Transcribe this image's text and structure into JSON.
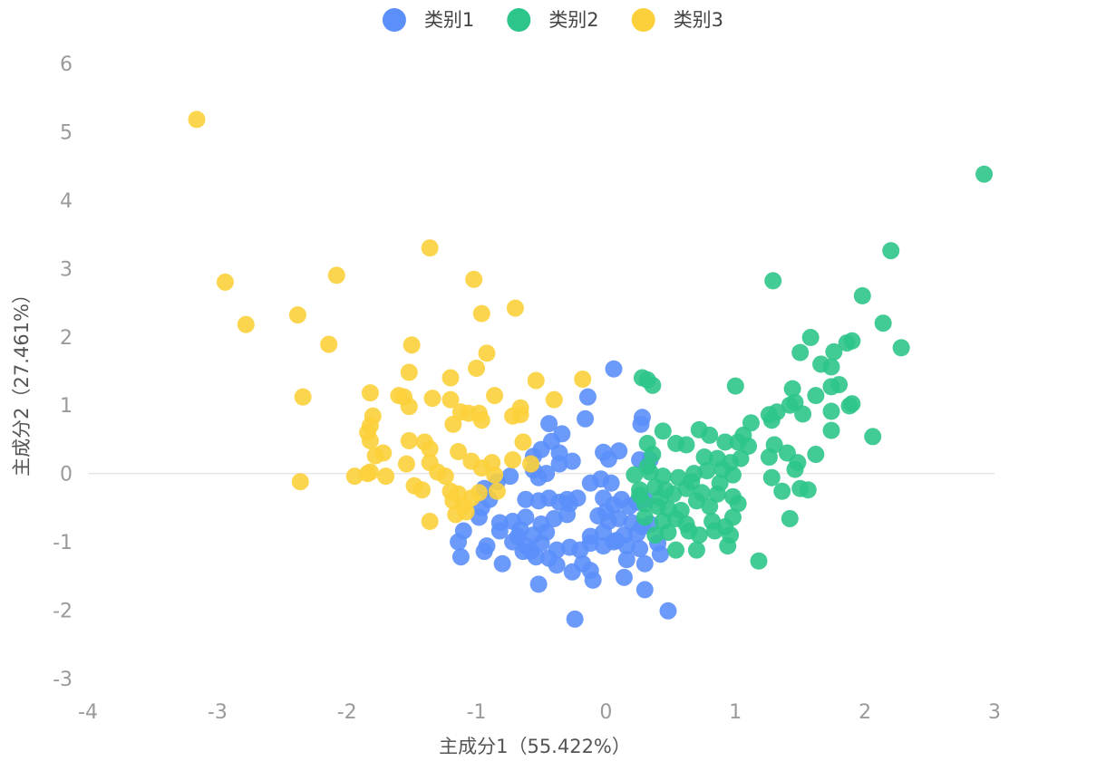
{
  "chart_data": {
    "type": "scatter",
    "xlabel": "主成分1（55.422%）",
    "ylabel": "主成分2（27.461%）",
    "xlim": [
      -4,
      3
    ],
    "ylim": [
      -3,
      6
    ],
    "xticks": [
      "-4",
      "-3",
      "-2",
      "-1",
      "0",
      "1",
      "2",
      "3"
    ],
    "yticks": [
      "-3",
      "-2",
      "-1",
      "0",
      "1",
      "2",
      "3",
      "4",
      "5",
      "6"
    ],
    "grid": "zero-line-only",
    "legend_position": "top-center",
    "series": [
      {
        "name": "类别1",
        "color": "#5b8ff9",
        "points": [
          [
            0.06,
            1.53
          ],
          [
            -0.14,
            1.12
          ],
          [
            -0.16,
            0.8
          ],
          [
            0.27,
            0.72
          ],
          [
            0.28,
            0.82
          ],
          [
            -0.44,
            0.73
          ],
          [
            -0.34,
            0.58
          ],
          [
            -0.42,
            0.47
          ],
          [
            -0.5,
            0.35
          ],
          [
            -0.36,
            0.3
          ],
          [
            -0.56,
            0.25
          ],
          [
            -0.36,
            0.14
          ],
          [
            -0.26,
            0.18
          ],
          [
            -0.02,
            0.31
          ],
          [
            0.1,
            0.33
          ],
          [
            0.02,
            0.21
          ],
          [
            0.26,
            0.2
          ],
          [
            0.34,
            0.2
          ],
          [
            -0.56,
            0.05
          ],
          [
            -0.46,
            0.0
          ],
          [
            -0.52,
            -0.06
          ],
          [
            -0.74,
            -0.04
          ],
          [
            -0.84,
            -0.12
          ],
          [
            -0.94,
            -0.22
          ],
          [
            -0.9,
            -0.38
          ],
          [
            -0.62,
            -0.38
          ],
          [
            -0.52,
            -0.4
          ],
          [
            -0.44,
            -0.36
          ],
          [
            -0.36,
            -0.42
          ],
          [
            -0.28,
            -0.44
          ],
          [
            -0.22,
            -0.36
          ],
          [
            -0.12,
            -0.14
          ],
          [
            -0.04,
            -0.08
          ],
          [
            0.04,
            -0.14
          ],
          [
            -0.02,
            -0.36
          ],
          [
            0.06,
            -0.46
          ],
          [
            0.12,
            -0.38
          ],
          [
            0.18,
            -0.48
          ],
          [
            0.24,
            -0.42
          ],
          [
            0.3,
            -0.38
          ],
          [
            -0.96,
            -0.5
          ],
          [
            -0.98,
            -0.64
          ],
          [
            -0.82,
            -0.72
          ],
          [
            -0.72,
            -0.7
          ],
          [
            -0.62,
            -0.64
          ],
          [
            -0.5,
            -0.74
          ],
          [
            -0.4,
            -0.66
          ],
          [
            -0.3,
            -0.6
          ],
          [
            -0.06,
            -0.62
          ],
          [
            0.02,
            -0.7
          ],
          [
            0.1,
            -0.66
          ],
          [
            0.2,
            -0.72
          ],
          [
            0.28,
            -0.78
          ],
          [
            0.34,
            -0.74
          ],
          [
            -1.1,
            -0.84
          ],
          [
            -0.82,
            -0.84
          ],
          [
            -0.66,
            -0.82
          ],
          [
            -0.56,
            -0.9
          ],
          [
            -0.46,
            -0.86
          ],
          [
            -0.12,
            -0.92
          ],
          [
            -0.02,
            -0.86
          ],
          [
            0.14,
            -0.9
          ],
          [
            0.24,
            -0.88
          ],
          [
            -1.14,
            -1.0
          ],
          [
            -0.92,
            -1.06
          ],
          [
            -0.72,
            -1.0
          ],
          [
            -0.62,
            -1.06
          ],
          [
            -0.5,
            -1.02
          ],
          [
            -0.38,
            -1.12
          ],
          [
            -0.28,
            -1.08
          ],
          [
            -0.12,
            -1.02
          ],
          [
            -0.02,
            -1.06
          ],
          [
            0.06,
            -1.0
          ],
          [
            0.16,
            -1.06
          ],
          [
            0.26,
            -1.1
          ],
          [
            0.4,
            -1.02
          ],
          [
            -1.12,
            -1.22
          ],
          [
            -0.94,
            -1.14
          ],
          [
            -0.8,
            -1.32
          ],
          [
            -0.64,
            -1.14
          ],
          [
            -0.54,
            -1.22
          ],
          [
            -0.44,
            -1.24
          ],
          [
            -0.38,
            -1.34
          ],
          [
            -0.26,
            -1.44
          ],
          [
            -0.18,
            -1.32
          ],
          [
            -0.12,
            -1.42
          ],
          [
            0.16,
            -1.26
          ],
          [
            0.3,
            -1.32
          ],
          [
            0.42,
            -1.18
          ],
          [
            -0.1,
            -1.56
          ],
          [
            -0.52,
            -1.62
          ],
          [
            0.14,
            -1.52
          ],
          [
            0.3,
            -1.7
          ],
          [
            0.48,
            -2.01
          ],
          [
            -0.24,
            -2.13
          ],
          [
            -0.68,
            -0.92
          ],
          [
            -0.58,
            -1.14
          ],
          [
            -0.2,
            -1.12
          ],
          [
            0.08,
            -0.98
          ],
          [
            -0.3,
            -0.38
          ],
          [
            0.0,
            -0.56
          ]
        ]
      },
      {
        "name": "类别2",
        "color": "#2ec58a",
        "points": [
          [
            2.92,
            4.38
          ],
          [
            2.2,
            3.26
          ],
          [
            1.29,
            2.82
          ],
          [
            1.98,
            2.6
          ],
          [
            2.14,
            2.2
          ],
          [
            2.28,
            1.84
          ],
          [
            1.58,
            1.99
          ],
          [
            1.9,
            1.94
          ],
          [
            1.86,
            1.91
          ],
          [
            1.76,
            1.78
          ],
          [
            1.5,
            1.77
          ],
          [
            1.66,
            1.6
          ],
          [
            1.74,
            1.56
          ],
          [
            1.8,
            1.3
          ],
          [
            1.74,
            1.27
          ],
          [
            1.62,
            1.14
          ],
          [
            1.44,
            1.24
          ],
          [
            1.0,
            1.28
          ],
          [
            0.28,
            1.4
          ],
          [
            0.32,
            1.37
          ],
          [
            0.36,
            1.29
          ],
          [
            1.9,
            1.02
          ],
          [
            1.88,
            0.99
          ],
          [
            1.46,
            1.04
          ],
          [
            1.42,
            1.0
          ],
          [
            1.26,
            0.86
          ],
          [
            1.32,
            0.9
          ],
          [
            1.52,
            0.87
          ],
          [
            1.74,
            0.91
          ],
          [
            1.28,
            0.78
          ],
          [
            1.12,
            0.74
          ],
          [
            1.06,
            0.56
          ],
          [
            1.74,
            0.63
          ],
          [
            2.06,
            0.54
          ],
          [
            0.72,
            0.64
          ],
          [
            0.8,
            0.56
          ],
          [
            0.92,
            0.46
          ],
          [
            1.02,
            0.46
          ],
          [
            1.1,
            0.4
          ],
          [
            1.3,
            0.42
          ],
          [
            1.4,
            0.3
          ],
          [
            1.62,
            0.28
          ],
          [
            0.44,
            0.62
          ],
          [
            0.54,
            0.44
          ],
          [
            0.62,
            0.42
          ],
          [
            0.32,
            0.44
          ],
          [
            0.36,
            0.28
          ],
          [
            0.76,
            0.24
          ],
          [
            0.86,
            0.22
          ],
          [
            0.96,
            0.16
          ],
          [
            1.04,
            0.22
          ],
          [
            1.26,
            0.24
          ],
          [
            1.48,
            0.16
          ],
          [
            1.46,
            0.06
          ],
          [
            0.22,
            -0.02
          ],
          [
            0.34,
            0.02
          ],
          [
            0.44,
            -0.04
          ],
          [
            0.56,
            -0.06
          ],
          [
            0.68,
            0.0
          ],
          [
            0.78,
            0.04
          ],
          [
            0.9,
            0.06
          ],
          [
            0.98,
            -0.02
          ],
          [
            1.28,
            -0.06
          ],
          [
            0.26,
            -0.24
          ],
          [
            0.38,
            -0.2
          ],
          [
            0.46,
            -0.24
          ],
          [
            0.52,
            -0.3
          ],
          [
            0.62,
            -0.22
          ],
          [
            0.74,
            -0.28
          ],
          [
            0.86,
            -0.3
          ],
          [
            0.98,
            -0.34
          ],
          [
            1.36,
            -0.26
          ],
          [
            1.5,
            -0.22
          ],
          [
            1.56,
            -0.24
          ],
          [
            0.3,
            -0.44
          ],
          [
            0.4,
            -0.48
          ],
          [
            0.48,
            -0.52
          ],
          [
            0.58,
            -0.54
          ],
          [
            0.7,
            -0.4
          ],
          [
            0.8,
            -0.48
          ],
          [
            1.02,
            -0.44
          ],
          [
            0.3,
            -0.64
          ],
          [
            0.44,
            -0.7
          ],
          [
            0.54,
            -0.66
          ],
          [
            0.62,
            -0.74
          ],
          [
            0.82,
            -0.7
          ],
          [
            0.98,
            -0.64
          ],
          [
            1.42,
            -0.66
          ],
          [
            0.38,
            -0.9
          ],
          [
            0.48,
            -0.86
          ],
          [
            0.64,
            -0.84
          ],
          [
            0.72,
            -0.9
          ],
          [
            0.84,
            -0.84
          ],
          [
            0.92,
            -0.78
          ],
          [
            0.96,
            -0.9
          ],
          [
            0.54,
            -1.12
          ],
          [
            0.7,
            -1.12
          ],
          [
            0.94,
            -1.06
          ],
          [
            1.18,
            -1.28
          ],
          [
            0.26,
            -0.32
          ],
          [
            0.42,
            -0.36
          ],
          [
            0.66,
            -0.12
          ],
          [
            0.88,
            -0.14
          ],
          [
            0.32,
            0.1
          ]
        ]
      },
      {
        "name": "类别3",
        "color": "#fcd03b",
        "points": [
          [
            -3.16,
            5.18
          ],
          [
            -2.94,
            2.8
          ],
          [
            -2.78,
            2.18
          ],
          [
            -2.38,
            2.32
          ],
          [
            -2.14,
            1.89
          ],
          [
            -2.08,
            2.9
          ],
          [
            -1.36,
            3.3
          ],
          [
            -1.02,
            2.84
          ],
          [
            -0.96,
            2.34
          ],
          [
            -0.7,
            2.42
          ],
          [
            -1.5,
            1.88
          ],
          [
            -0.92,
            1.76
          ],
          [
            -1.52,
            1.48
          ],
          [
            -1.0,
            1.54
          ],
          [
            -1.2,
            1.4
          ],
          [
            -0.54,
            1.36
          ],
          [
            -0.18,
            1.38
          ],
          [
            -2.34,
            1.12
          ],
          [
            -1.82,
            1.18
          ],
          [
            -1.6,
            1.14
          ],
          [
            -1.56,
            1.12
          ],
          [
            -1.52,
            0.98
          ],
          [
            -1.34,
            1.1
          ],
          [
            -1.2,
            1.08
          ],
          [
            -0.86,
            1.14
          ],
          [
            -0.66,
            0.96
          ],
          [
            -0.4,
            1.08
          ],
          [
            -1.8,
            0.84
          ],
          [
            -1.12,
            0.9
          ],
          [
            -1.06,
            0.88
          ],
          [
            -0.98,
            0.88
          ],
          [
            -0.96,
            0.78
          ],
          [
            -0.72,
            0.84
          ],
          [
            -0.66,
            0.86
          ],
          [
            -1.18,
            0.72
          ],
          [
            -1.82,
            0.7
          ],
          [
            -1.84,
            0.6
          ],
          [
            -1.82,
            0.48
          ],
          [
            -1.72,
            0.3
          ],
          [
            -1.78,
            0.26
          ],
          [
            -1.52,
            0.48
          ],
          [
            -1.4,
            0.46
          ],
          [
            -1.36,
            0.36
          ],
          [
            -1.14,
            0.32
          ],
          [
            -0.64,
            0.46
          ],
          [
            -1.54,
            0.14
          ],
          [
            -1.36,
            0.16
          ],
          [
            -1.04,
            0.18
          ],
          [
            -0.88,
            0.16
          ],
          [
            -0.72,
            0.2
          ],
          [
            -0.58,
            0.14
          ],
          [
            -0.96,
            0.08
          ],
          [
            -1.94,
            -0.04
          ],
          [
            -1.84,
            0.0
          ],
          [
            -1.82,
            0.02
          ],
          [
            -1.7,
            -0.04
          ],
          [
            -1.3,
            0.02
          ],
          [
            -1.24,
            -0.04
          ],
          [
            -0.86,
            -0.02
          ],
          [
            -2.36,
            -0.12
          ],
          [
            -1.48,
            -0.18
          ],
          [
            -1.42,
            -0.24
          ],
          [
            -1.2,
            -0.26
          ],
          [
            -1.14,
            -0.3
          ],
          [
            -1.04,
            -0.36
          ],
          [
            -1.18,
            -0.4
          ],
          [
            -1.1,
            -0.48
          ],
          [
            -1.08,
            -0.56
          ],
          [
            -1.16,
            -0.6
          ],
          [
            -1.36,
            -0.7
          ],
          [
            -0.98,
            -0.28
          ],
          [
            -0.84,
            -0.26
          ]
        ]
      }
    ]
  }
}
